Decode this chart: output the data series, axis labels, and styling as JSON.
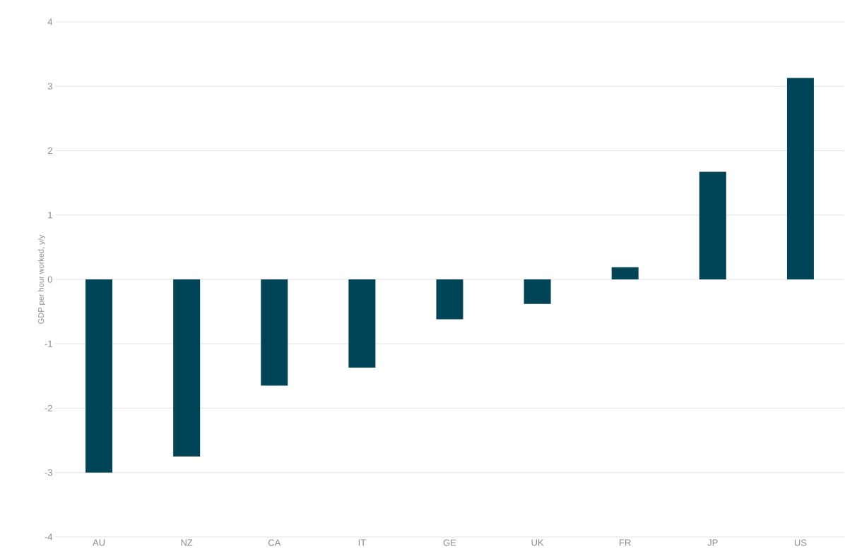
{
  "chart_data": {
    "type": "bar",
    "ylabel": "GDP per hour worked, y/y",
    "categories": [
      "AU",
      "NZ",
      "CA",
      "IT",
      "GE",
      "UK",
      "FR",
      "JP",
      "US"
    ],
    "values": [
      -3.0,
      -2.75,
      -1.65,
      -1.37,
      -0.62,
      -0.38,
      0.19,
      1.67,
      3.13
    ],
    "color": "#004458",
    "ylim": [
      -4,
      4
    ],
    "yticks": [
      -4,
      -3,
      -2,
      -1,
      0,
      1,
      2,
      3,
      4
    ],
    "grid": "y"
  }
}
